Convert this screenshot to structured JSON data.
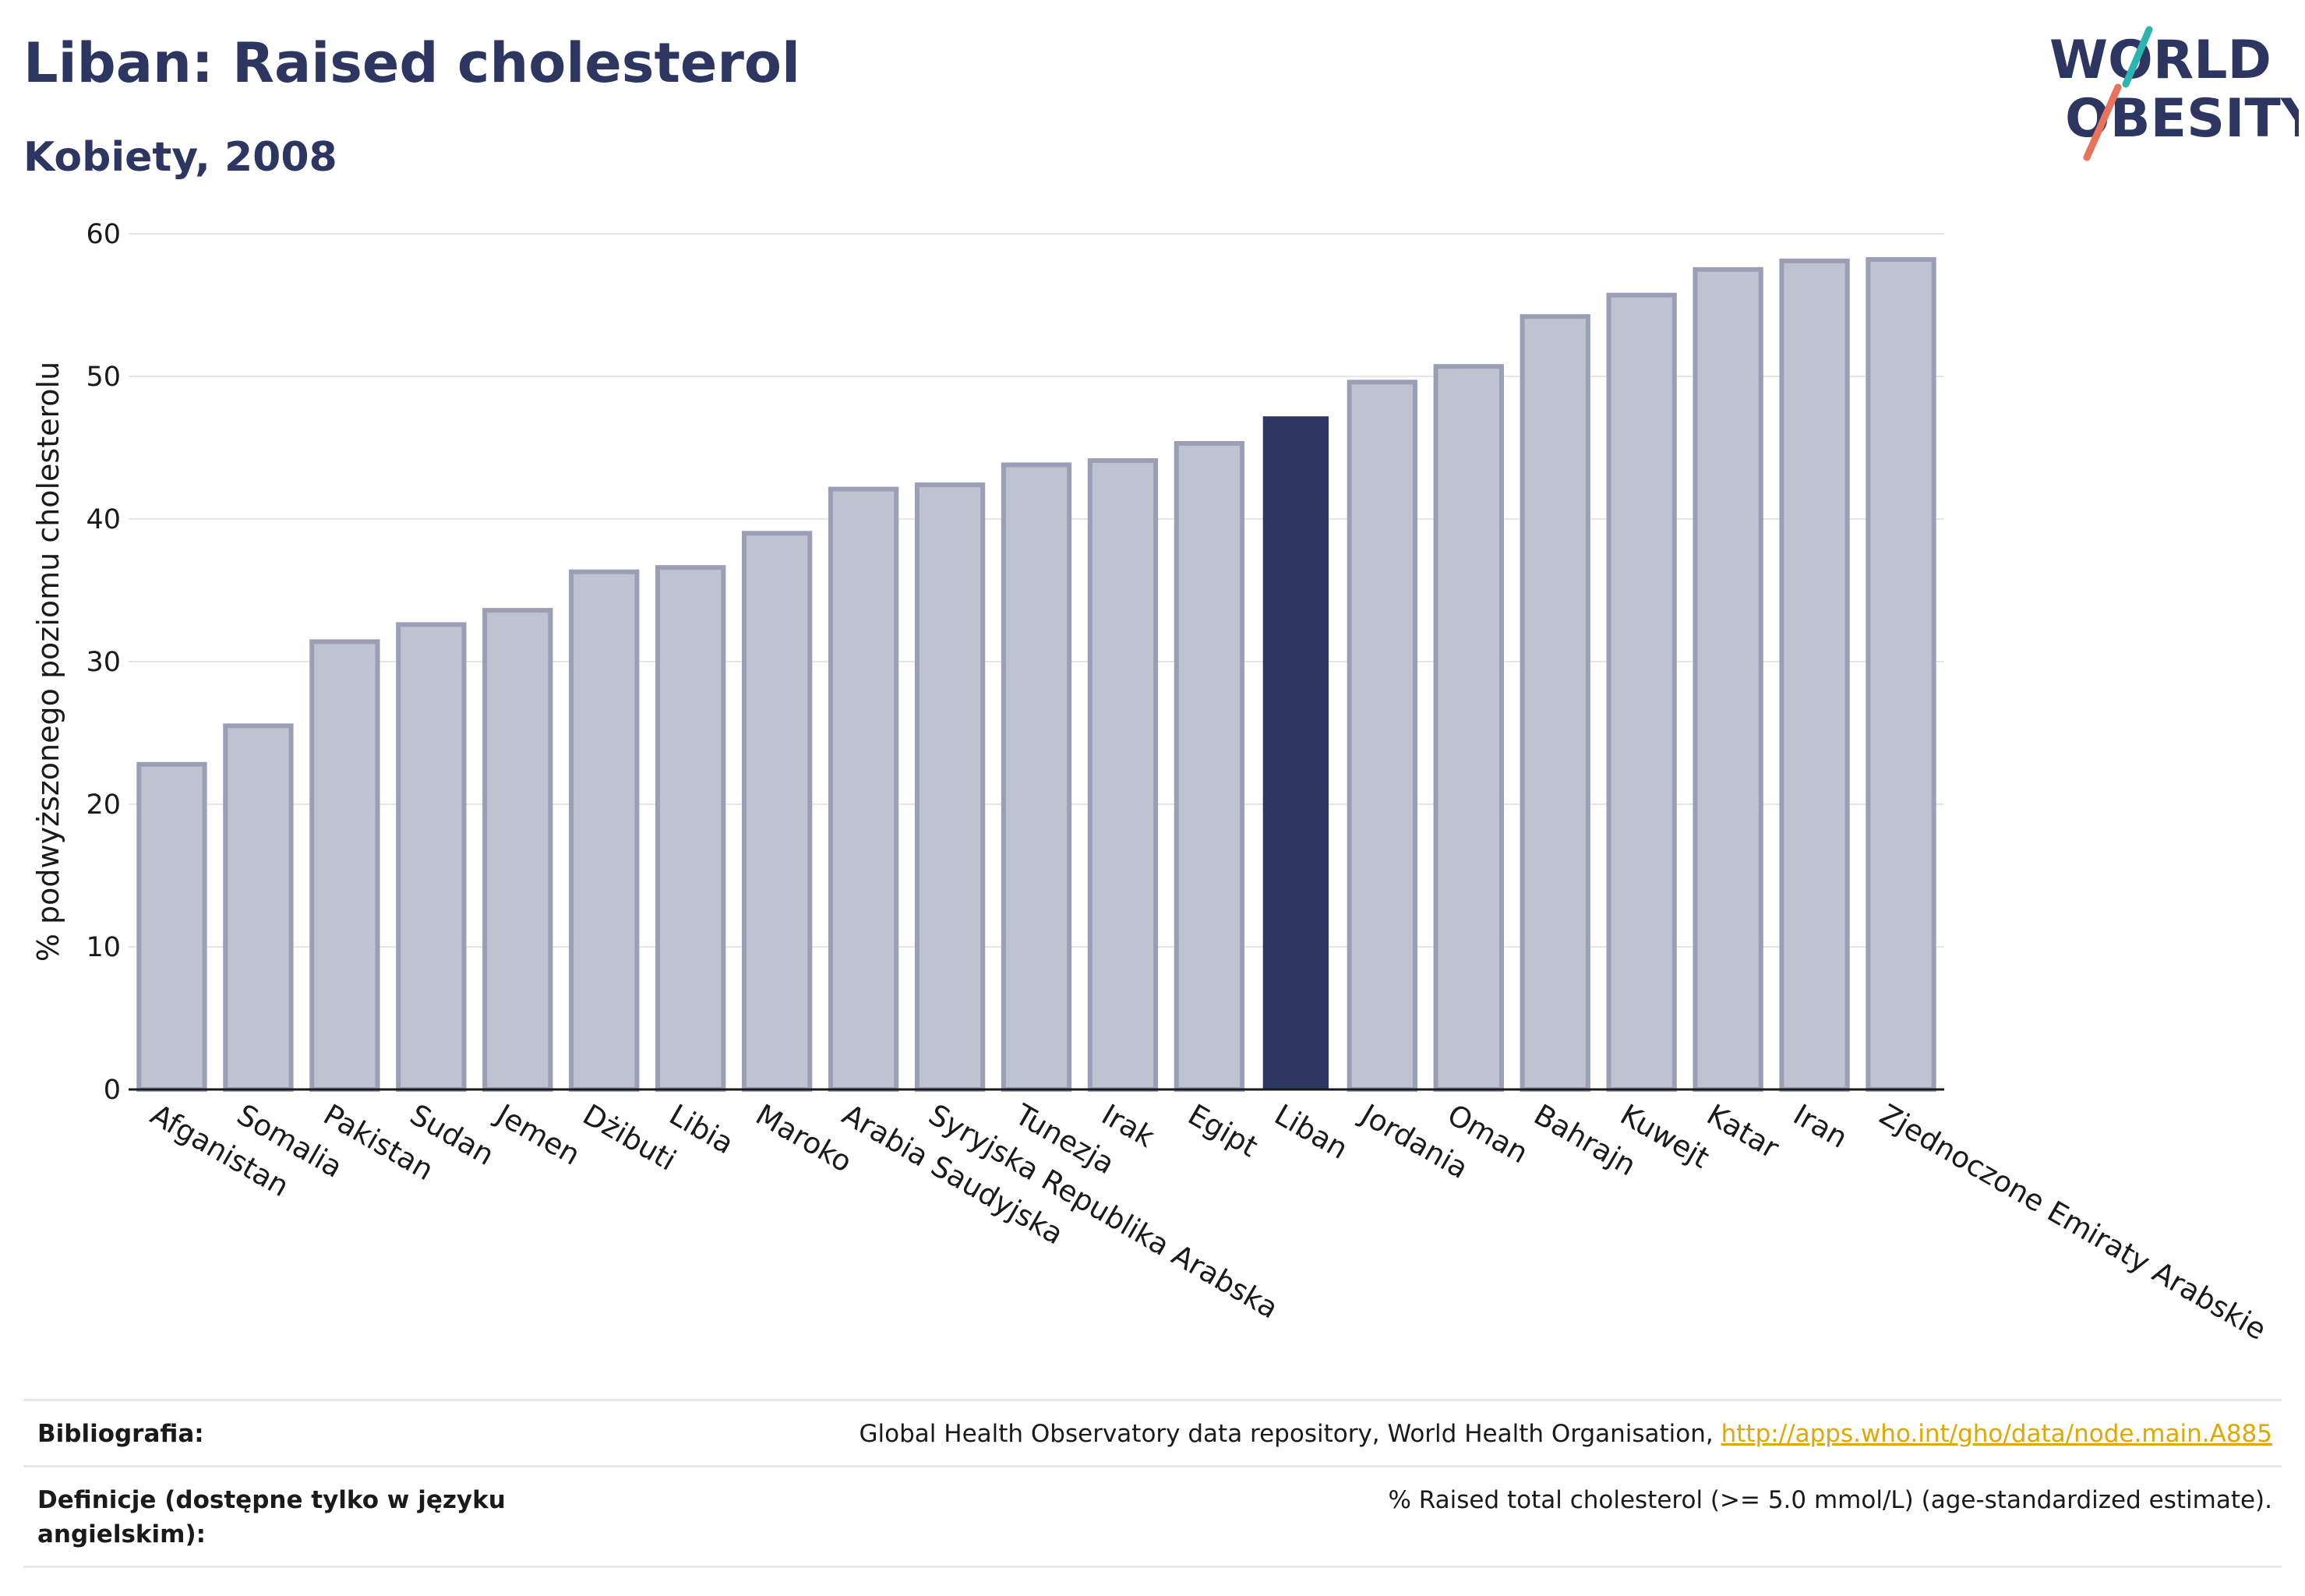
{
  "header": {
    "title": "Liban: Raised cholesterol",
    "subtitle": "Kobiety, 2008"
  },
  "logo": {
    "line1": "WORLD",
    "line2": "OBESITY"
  },
  "colors": {
    "highlight": "#2d3561",
    "bar_fill": "#bfc2d0",
    "bar_stroke": "#9a9fb6",
    "logo_teal": "#2db3b0",
    "logo_coral": "#e8735a",
    "link": "#e0a800"
  },
  "chart_data": {
    "type": "bar",
    "title": "Liban: Raised cholesterol",
    "subtitle": "Kobiety, 2008",
    "ylabel": "% podwyższonego poziomu cholesterolu",
    "xlabel": "",
    "ylim": [
      0,
      60
    ],
    "yticks": [
      0,
      10,
      20,
      30,
      40,
      50,
      60
    ],
    "grid": true,
    "highlight": "Liban",
    "categories": [
      "Afganistan",
      "Somalia",
      "Pakistan",
      "Sudan",
      "Jemen",
      "Dżibuti",
      "Libia",
      "Maroko",
      "Arabia Saudyjska",
      "Syryjska Republika Arabska",
      "Tunezja",
      "Irak",
      "Egipt",
      "Liban",
      "Jordania",
      "Oman",
      "Bahrajn",
      "Kuwejt",
      "Katar",
      "Iran",
      "Zjednoczone Emiraty Arabskie"
    ],
    "values": [
      22.8,
      25.5,
      31.4,
      32.6,
      33.6,
      36.3,
      36.6,
      39.0,
      42.1,
      42.4,
      43.8,
      44.1,
      45.3,
      47.2,
      49.6,
      50.7,
      54.2,
      55.7,
      57.5,
      58.1,
      58.2
    ]
  },
  "footer": {
    "bibliography_label": "Bibliografia:",
    "bibliography_text": "Global Health Observatory data repository, World Health Organisation, ",
    "bibliography_link": "http://apps.who.int/gho/data/node.main.A885",
    "definitions_label": "Definicje (dostępne tylko w języku angielskim):",
    "definitions_text": "% Raised total cholesterol (>= 5.0 mmol/L) (age-standardized estimate)."
  }
}
